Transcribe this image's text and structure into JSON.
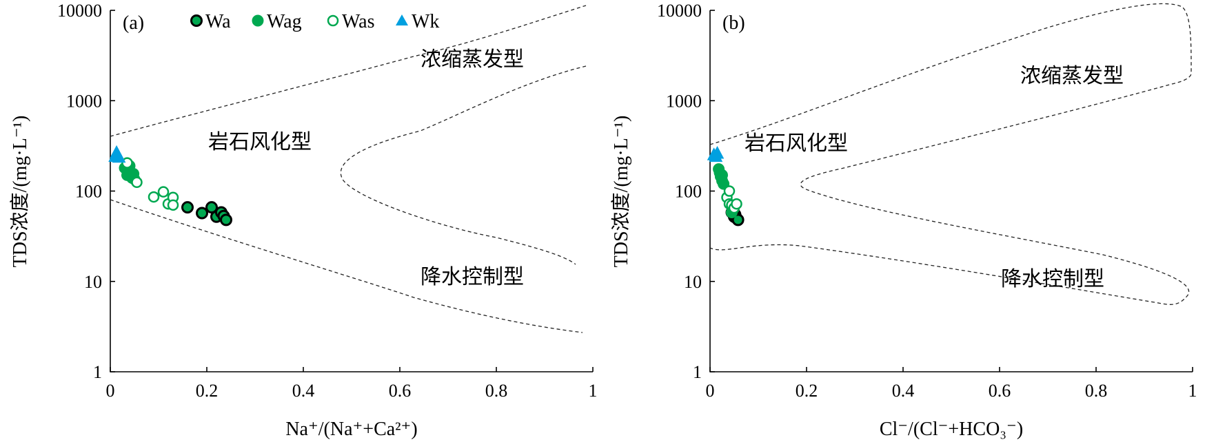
{
  "legend": [
    {
      "key": "Wa",
      "label": "Wa"
    },
    {
      "key": "Wag",
      "label": "Wag"
    },
    {
      "key": "Was",
      "label": "Was"
    },
    {
      "key": "Wk",
      "label": "Wk"
    }
  ],
  "series_styles": {
    "Wa": {
      "marker": "circle",
      "fill": "#00a850",
      "stroke": "#000000"
    },
    "Wag": {
      "marker": "circle",
      "fill": "#00a850",
      "stroke": "#00a850"
    },
    "Was": {
      "marker": "circle",
      "fill": "#ffffff",
      "stroke": "#00a850"
    },
    "Wk": {
      "marker": "triangle",
      "fill": "#00a0e0",
      "stroke": "#00a0e0"
    }
  },
  "zone_labels": {
    "evaporation": "浓缩蒸发型",
    "weathering": "岩石风化型",
    "precipitation": "降水控制型"
  },
  "chart_data": [
    {
      "type": "scatter",
      "panel_label": "(a)",
      "xlabel": "Na⁺/(Na⁺+Ca²⁺)",
      "ylabel": "TDS浓度/(mg·L⁻¹)",
      "xlim": [
        0,
        1
      ],
      "ylim": [
        1,
        10000
      ],
      "yscale": "log",
      "xticks": [
        "0",
        "0.2",
        "0.4",
        "0.6",
        "0.8",
        "1"
      ],
      "yticks": [
        "1",
        "10",
        "100",
        "1000",
        "10000"
      ],
      "series": [
        {
          "name": "Wa",
          "x": [
            0.16,
            0.19,
            0.21,
            0.22,
            0.23,
            0.235,
            0.24
          ],
          "y": [
            66,
            57,
            66,
            52,
            58,
            53,
            48
          ]
        },
        {
          "name": "Wag",
          "x": [
            0.03,
            0.035,
            0.038,
            0.04,
            0.045,
            0.048,
            0.05
          ],
          "y": [
            180,
            150,
            165,
            190,
            140,
            155,
            135
          ]
        },
        {
          "name": "Was",
          "x": [
            0.035,
            0.055,
            0.09,
            0.11,
            0.12,
            0.13,
            0.13
          ],
          "y": [
            205,
            125,
            86,
            98,
            72,
            85,
            70
          ]
        },
        {
          "name": "Wk",
          "x": [
            0.01,
            0.013,
            0.015,
            0.018
          ],
          "y": [
            240,
            265,
            250,
            235
          ]
        }
      ]
    },
    {
      "type": "scatter",
      "panel_label": "(b)",
      "xlabel": "Cl⁻/(Cl⁻+HCO₃⁻)",
      "ylabel": "TDS浓度/(mg·L⁻¹)",
      "xlim": [
        0,
        1
      ],
      "ylim": [
        1,
        10000
      ],
      "yscale": "log",
      "xticks": [
        "0",
        "0.2",
        "0.4",
        "0.6",
        "0.8",
        "1"
      ],
      "yticks": [
        "1",
        "10",
        "100",
        "1000",
        "10000"
      ],
      "series": [
        {
          "name": "Wa",
          "x": [
            0.045,
            0.05,
            0.052,
            0.055,
            0.058
          ],
          "y": [
            58,
            52,
            55,
            50,
            48
          ]
        },
        {
          "name": "Wag",
          "x": [
            0.018,
            0.02,
            0.022,
            0.025,
            0.025,
            0.028,
            0.045
          ],
          "y": [
            175,
            160,
            145,
            150,
            130,
            120,
            58
          ]
        },
        {
          "name": "Was",
          "x": [
            0.035,
            0.04,
            0.04,
            0.045,
            0.05,
            0.055
          ],
          "y": [
            85,
            100,
            72,
            70,
            65,
            72
          ]
        },
        {
          "name": "Wk",
          "x": [
            0.008,
            0.012,
            0.015
          ],
          "y": [
            250,
            240,
            260
          ]
        }
      ]
    }
  ]
}
